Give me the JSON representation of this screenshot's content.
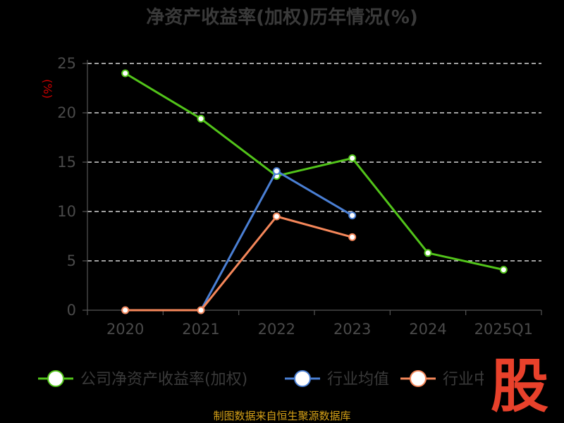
{
  "chart_data": {
    "type": "line",
    "title": "净资产收益率(加权)历年情况(%)",
    "ylabel": "(%)",
    "xlabel": "",
    "categories": [
      "2020",
      "2021",
      "2022",
      "2023",
      "2024",
      "2025Q1"
    ],
    "ylim": [
      0,
      25
    ],
    "yticks": [
      0,
      5,
      10,
      15,
      20,
      25
    ],
    "grid": true,
    "legend_position": "bottom",
    "series": [
      {
        "name": "公司净资产收益率(加权)",
        "color": "#52c41a",
        "values": [
          24.0,
          19.4,
          13.6,
          15.4,
          5.8,
          4.1
        ]
      },
      {
        "name": "行业均值",
        "color": "#4a7fd4",
        "values": [
          0.0,
          0.0,
          14.1,
          9.6,
          null,
          null
        ]
      },
      {
        "name": "行业中位数",
        "color": "#f5875a",
        "values": [
          0.0,
          0.0,
          9.5,
          7.4,
          null,
          null
        ]
      }
    ]
  },
  "footer": {
    "source": "制图数据来自恒生聚源数据库"
  },
  "logo": {
    "text": "股"
  }
}
